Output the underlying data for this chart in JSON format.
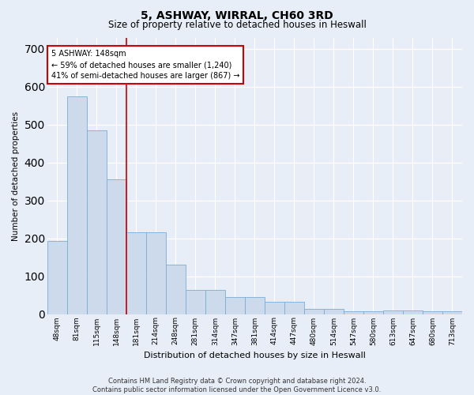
{
  "title": "5, ASHWAY, WIRRAL, CH60 3RD",
  "subtitle": "Size of property relative to detached houses in Heswall",
  "xlabel": "Distribution of detached houses by size in Heswall",
  "ylabel": "Number of detached properties",
  "categories": [
    "48sqm",
    "81sqm",
    "115sqm",
    "148sqm",
    "181sqm",
    "214sqm",
    "248sqm",
    "281sqm",
    "314sqm",
    "347sqm",
    "381sqm",
    "414sqm",
    "447sqm",
    "480sqm",
    "514sqm",
    "547sqm",
    "580sqm",
    "613sqm",
    "647sqm",
    "680sqm",
    "713sqm"
  ],
  "values": [
    192,
    575,
    485,
    355,
    215,
    215,
    130,
    63,
    63,
    44,
    44,
    33,
    33,
    14,
    14,
    7,
    7,
    10,
    10,
    7,
    7
  ],
  "bar_color": "#ccdaec",
  "bar_edge_color": "#7aaed4",
  "red_line_index": 3,
  "annotation_text": "5 ASHWAY: 148sqm\n← 59% of detached houses are smaller (1,240)\n41% of semi-detached houses are larger (867) →",
  "annotation_box_color": "white",
  "annotation_box_edge_color": "#cc0000",
  "red_line_color": "#cc0000",
  "ylim": [
    0,
    730
  ],
  "yticks": [
    0,
    100,
    200,
    300,
    400,
    500,
    600,
    700
  ],
  "bg_color": "#e8eef8",
  "grid_color": "white",
  "title_fontsize": 10,
  "subtitle_fontsize": 8.5,
  "footer": "Contains HM Land Registry data © Crown copyright and database right 2024.\nContains public sector information licensed under the Open Government Licence v3.0."
}
